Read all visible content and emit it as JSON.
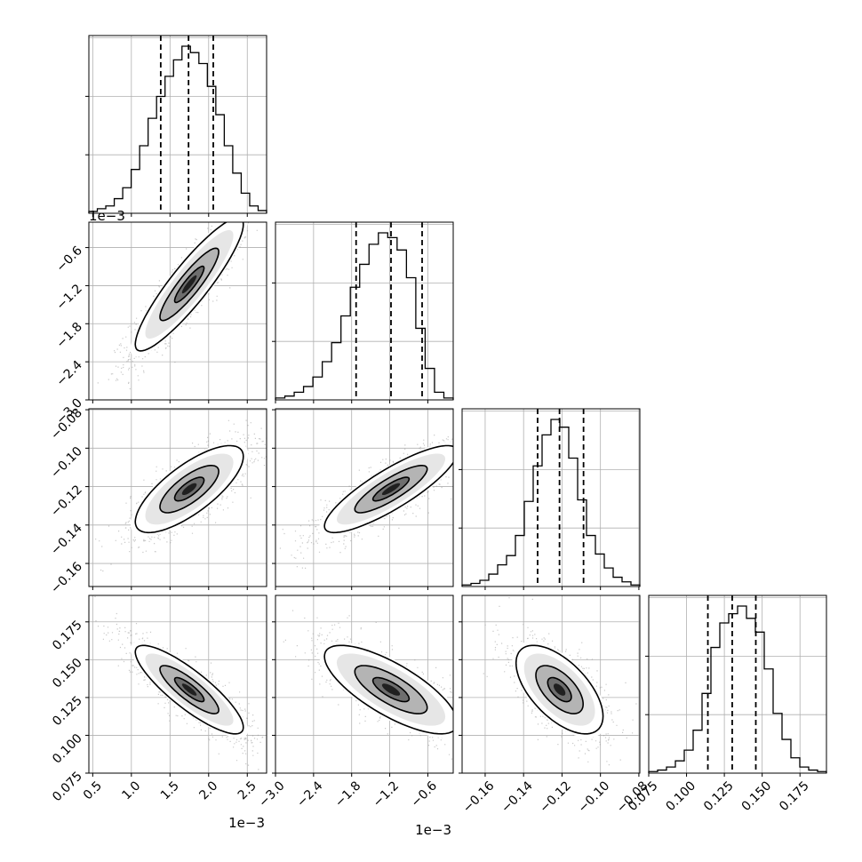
{
  "chart_data": {
    "type": "corner",
    "grid": true,
    "parameters": [
      {
        "range": [
          0.00045,
          0.00275
        ],
        "ticks": [
          0.0005,
          0.001,
          0.0015,
          0.002,
          0.0025
        ],
        "tick_labels": [
          "0.5",
          "1.0",
          "1.5",
          "2.0",
          "2.5"
        ],
        "exponent_label": "1e−3",
        "quantiles": [
          0.00138,
          0.00174,
          0.00206
        ],
        "hist_counts": [
          2,
          5,
          8,
          16,
          28,
          48,
          74,
          104,
          128,
          150,
          168,
          183,
          176,
          164,
          139,
          108,
          74,
          44,
          22,
          8,
          3
        ]
      },
      {
        "range": [
          -0.003,
          -0.0002
        ],
        "ticks": [
          -0.003,
          -0.0024,
          -0.0018,
          -0.0012,
          -0.0006
        ],
        "tick_labels": [
          "−3.0",
          "−2.4",
          "−1.8",
          "−1.2",
          "−0.6"
        ],
        "exponent_label": "1e−3",
        "quantiles": [
          -0.00173,
          -0.00118,
          -0.00069
        ],
        "hist_counts": [
          2,
          4,
          8,
          14,
          24,
          40,
          60,
          88,
          118,
          142,
          163,
          175,
          170,
          157,
          128,
          75,
          33,
          8,
          2
        ]
      },
      {
        "range": [
          -0.172,
          -0.0795
        ],
        "ticks": [
          -0.16,
          -0.14,
          -0.12,
          -0.1,
          -0.08
        ],
        "tick_labels": [
          "−0.16",
          "−0.14",
          "−0.12",
          "−0.10",
          "−0.08"
        ],
        "quantiles": [
          -0.1327,
          -0.1213,
          -0.1088
        ],
        "hist_counts": [
          1,
          2,
          4,
          8,
          14,
          20,
          33,
          55,
          78,
          98,
          108,
          103,
          83,
          56,
          33,
          21,
          12,
          6,
          3,
          1
        ]
      },
      {
        "range": [
          0.075,
          0.1925
        ],
        "ticks": [
          0.075,
          0.1,
          0.125,
          0.15,
          0.175
        ],
        "tick_labels": [
          "0.075",
          "0.100",
          "0.125",
          "0.150",
          "0.175"
        ],
        "quantiles": [
          0.1141,
          0.1302,
          0.1458
        ],
        "hist_counts": [
          1,
          2,
          4,
          8,
          15,
          28,
          52,
          82,
          98,
          104,
          109,
          101,
          92,
          68,
          39,
          22,
          10,
          4,
          2,
          1
        ]
      }
    ],
    "correlations": [
      {
        "x": 0,
        "y": 1,
        "mean": [
          0.00175,
          -0.00118
        ],
        "std": [
          0.00038,
          0.00057
        ],
        "rho": 0.9
      },
      {
        "x": 0,
        "y": 2,
        "mean": [
          0.00175,
          -0.1213
        ],
        "std": [
          0.00038,
          0.0123
        ],
        "rho": 0.75
      },
      {
        "x": 1,
        "y": 2,
        "mean": [
          -0.00118,
          -0.1213
        ],
        "std": [
          0.00057,
          0.0123
        ],
        "rho": 0.85
      },
      {
        "x": 0,
        "y": 3,
        "mean": [
          0.00175,
          0.1302
        ],
        "std": [
          0.00038,
          0.0159
        ],
        "rho": -0.85
      },
      {
        "x": 1,
        "y": 3,
        "mean": [
          -0.00118,
          0.1302
        ],
        "std": [
          0.00057,
          0.0159
        ],
        "rho": -0.75
      },
      {
        "x": 2,
        "y": 3,
        "mean": [
          -0.1213,
          0.1302
        ],
        "std": [
          0.0123,
          0.0159
        ],
        "rho": -0.6
      }
    ],
    "contour_levels_sigma": [
      0.5,
      1.0,
      1.5,
      2.0
    ]
  }
}
